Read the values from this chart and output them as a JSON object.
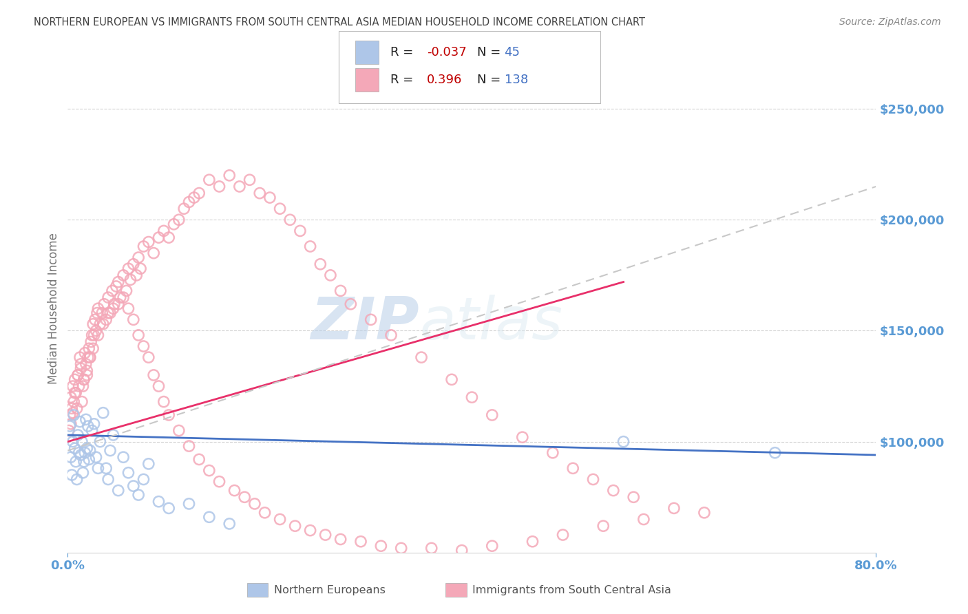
{
  "title": "NORTHERN EUROPEAN VS IMMIGRANTS FROM SOUTH CENTRAL ASIA MEDIAN HOUSEHOLD INCOME CORRELATION CHART",
  "source": "Source: ZipAtlas.com",
  "ylabel": "Median Household Income",
  "blue_R": "-0.037",
  "blue_N": "45",
  "pink_R": "0.396",
  "pink_N": "138",
  "ylim": [
    50000,
    270000
  ],
  "xlim": [
    0.0,
    0.8
  ],
  "yticks": [
    100000,
    150000,
    200000,
    250000
  ],
  "ytick_labels": [
    "$100,000",
    "$150,000",
    "$200,000",
    "$250,000"
  ],
  "watermark_ZIP": "ZIP",
  "watermark_atlas": "atlas",
  "blue_scatter_x": [
    0.002,
    0.003,
    0.004,
    0.005,
    0.006,
    0.007,
    0.008,
    0.009,
    0.01,
    0.011,
    0.012,
    0.013,
    0.014,
    0.015,
    0.016,
    0.017,
    0.018,
    0.019,
    0.02,
    0.021,
    0.022,
    0.024,
    0.026,
    0.028,
    0.03,
    0.032,
    0.035,
    0.038,
    0.04,
    0.042,
    0.045,
    0.05,
    0.055,
    0.06,
    0.065,
    0.07,
    0.075,
    0.08,
    0.09,
    0.1,
    0.12,
    0.14,
    0.16,
    0.55,
    0.7
  ],
  "blue_scatter_y": [
    107000,
    93000,
    85000,
    100000,
    112000,
    97000,
    91000,
    83000,
    103000,
    95000,
    109000,
    94000,
    100000,
    86000,
    91000,
    95000,
    110000,
    97000,
    107000,
    92000,
    96000,
    105000,
    108000,
    93000,
    88000,
    100000,
    113000,
    88000,
    83000,
    96000,
    103000,
    78000,
    93000,
    86000,
    80000,
    76000,
    83000,
    90000,
    73000,
    70000,
    72000,
    66000,
    63000,
    100000,
    95000
  ],
  "pink_scatter_x": [
    0.001,
    0.002,
    0.003,
    0.004,
    0.005,
    0.006,
    0.007,
    0.008,
    0.009,
    0.01,
    0.011,
    0.012,
    0.013,
    0.014,
    0.015,
    0.016,
    0.017,
    0.018,
    0.019,
    0.02,
    0.021,
    0.022,
    0.023,
    0.024,
    0.025,
    0.026,
    0.027,
    0.028,
    0.029,
    0.03,
    0.032,
    0.034,
    0.036,
    0.038,
    0.04,
    0.042,
    0.044,
    0.046,
    0.048,
    0.05,
    0.052,
    0.055,
    0.058,
    0.06,
    0.062,
    0.065,
    0.068,
    0.07,
    0.072,
    0.075,
    0.08,
    0.085,
    0.09,
    0.095,
    0.1,
    0.105,
    0.11,
    0.115,
    0.12,
    0.125,
    0.13,
    0.14,
    0.15,
    0.16,
    0.17,
    0.18,
    0.19,
    0.2,
    0.21,
    0.22,
    0.23,
    0.24,
    0.25,
    0.26,
    0.27,
    0.28,
    0.3,
    0.32,
    0.35,
    0.38,
    0.4,
    0.42,
    0.45,
    0.48,
    0.5,
    0.52,
    0.54,
    0.56,
    0.6,
    0.63,
    0.003,
    0.005,
    0.007,
    0.01,
    0.013,
    0.016,
    0.019,
    0.022,
    0.025,
    0.03,
    0.035,
    0.04,
    0.045,
    0.05,
    0.055,
    0.06,
    0.065,
    0.07,
    0.075,
    0.08,
    0.085,
    0.09,
    0.095,
    0.1,
    0.11,
    0.12,
    0.13,
    0.14,
    0.15,
    0.165,
    0.175,
    0.185,
    0.195,
    0.21,
    0.225,
    0.24,
    0.255,
    0.27,
    0.29,
    0.31,
    0.33,
    0.36,
    0.39,
    0.42,
    0.46,
    0.49,
    0.53,
    0.57
  ],
  "pink_scatter_y": [
    105000,
    112000,
    120000,
    115000,
    125000,
    118000,
    128000,
    122000,
    115000,
    130000,
    125000,
    138000,
    133000,
    118000,
    125000,
    128000,
    140000,
    135000,
    130000,
    138000,
    142000,
    138000,
    145000,
    148000,
    153000,
    148000,
    155000,
    150000,
    158000,
    160000,
    153000,
    158000,
    162000,
    155000,
    165000,
    158000,
    168000,
    162000,
    170000,
    172000,
    165000,
    175000,
    168000,
    178000,
    173000,
    180000,
    175000,
    183000,
    178000,
    188000,
    190000,
    185000,
    192000,
    195000,
    192000,
    198000,
    200000,
    205000,
    208000,
    210000,
    212000,
    218000,
    215000,
    220000,
    215000,
    218000,
    212000,
    210000,
    205000,
    200000,
    195000,
    188000,
    180000,
    175000,
    168000,
    162000,
    155000,
    148000,
    138000,
    128000,
    120000,
    112000,
    102000,
    95000,
    88000,
    83000,
    78000,
    75000,
    70000,
    68000,
    108000,
    113000,
    122000,
    130000,
    135000,
    128000,
    132000,
    138000,
    142000,
    148000,
    153000,
    158000,
    160000,
    162000,
    165000,
    160000,
    155000,
    148000,
    143000,
    138000,
    130000,
    125000,
    118000,
    112000,
    105000,
    98000,
    92000,
    87000,
    82000,
    78000,
    75000,
    72000,
    68000,
    65000,
    62000,
    60000,
    58000,
    56000,
    55000,
    53000,
    52000,
    52000,
    51000,
    53000,
    55000,
    58000,
    62000,
    65000
  ],
  "blue_line_x": [
    0.0,
    0.8
  ],
  "blue_line_y": [
    103000,
    94000
  ],
  "pink_line_x": [
    0.0,
    0.55
  ],
  "pink_line_y": [
    100000,
    172000
  ],
  "dashed_line_x": [
    0.0,
    0.8
  ],
  "dashed_line_y": [
    96000,
    215000
  ],
  "bg_color": "#ffffff",
  "blue_color": "#aec6e8",
  "pink_color": "#f4a8b8",
  "blue_line_color": "#4472c4",
  "pink_line_color": "#e8306a",
  "dashed_line_color": "#c8c8c8",
  "grid_color": "#d3d3d3",
  "title_color": "#404040",
  "axis_label_color": "#5b9bd5",
  "legend_R_color": "#c00000",
  "legend_N_color": "#4472c4",
  "source_color": "#888888"
}
